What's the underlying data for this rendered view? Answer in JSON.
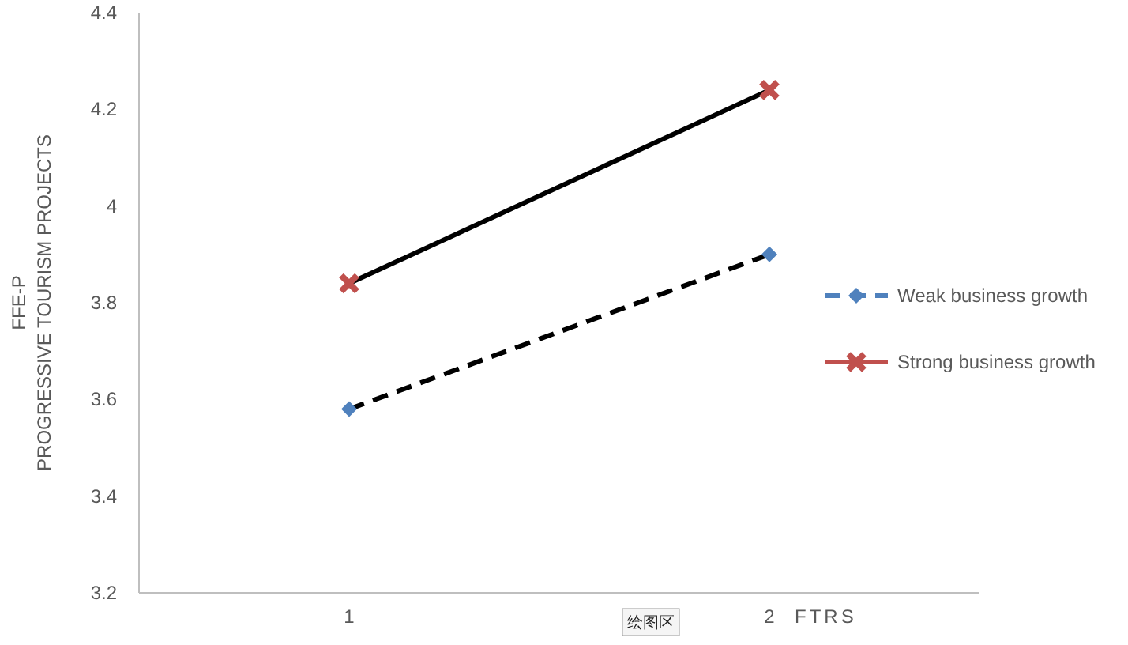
{
  "chart_data": {
    "type": "line",
    "categories": [
      "1",
      "2"
    ],
    "xlabel": "FTRS",
    "ylabel": "FFE-P\nPROGRESSIVE  TOURISM PROJECTS",
    "ylim": [
      3.2,
      4.4
    ],
    "yticks": [
      3.2,
      3.4,
      3.6,
      3.8,
      {
        "value": 4,
        "label": "4"
      },
      4.2,
      4.4
    ],
    "series": [
      {
        "name": "Weak business growth",
        "color": "#4f81bd",
        "values": [
          3.58,
          3.9
        ],
        "marker": "diamond",
        "line_style": "dashed"
      },
      {
        "name": "Strong business growth",
        "color": "#c0504d",
        "values": [
          3.84,
          4.24
        ],
        "marker": "cross",
        "line_style": "solid"
      }
    ],
    "legend": "right",
    "grid": false,
    "annotations": [
      "绘图区"
    ]
  }
}
